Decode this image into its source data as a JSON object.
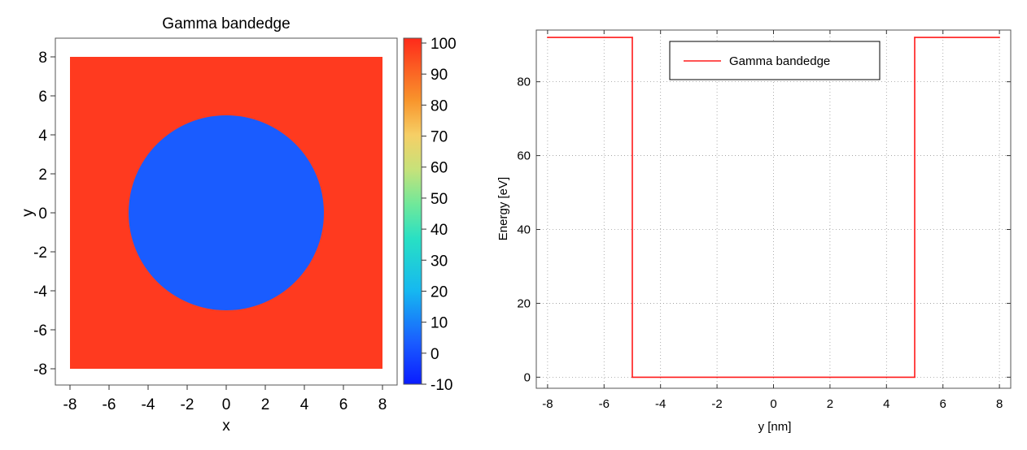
{
  "chart_data": [
    {
      "type": "heatmap",
      "title": "Gamma bandedge",
      "xlabel": "x",
      "ylabel": "y",
      "xlim": [
        -8,
        8
      ],
      "ylim": [
        -8,
        8
      ],
      "x_ticks": [
        -8,
        -6,
        -4,
        -2,
        0,
        2,
        4,
        6,
        8
      ],
      "y_ticks": [
        -8,
        -6,
        -4,
        -2,
        0,
        2,
        4,
        6,
        8
      ],
      "colorbar": {
        "range": [
          -10,
          100
        ],
        "ticks": [
          -10,
          0,
          10,
          20,
          30,
          40,
          50,
          60,
          70,
          80,
          90,
          100
        ],
        "colormap": "jet"
      },
      "regions": [
        {
          "shape": "square",
          "xmin": -8,
          "xmax": 8,
          "ymin": -8,
          "ymax": 8,
          "value": 92,
          "color": "#ff3a1f"
        },
        {
          "shape": "disk",
          "center": [
            0,
            0
          ],
          "radius": 5,
          "value": 0,
          "color": "#1a5cff"
        }
      ]
    },
    {
      "type": "line",
      "title": "",
      "xlabel": "y [nm]",
      "ylabel": "Energy [eV]",
      "xlim": [
        -8.4,
        8.4
      ],
      "ylim": [
        -3,
        94
      ],
      "x_ticks": [
        -8,
        -6,
        -4,
        -2,
        0,
        2,
        4,
        6,
        8
      ],
      "y_ticks": [
        0,
        20,
        40,
        60,
        80
      ],
      "grid": true,
      "legend_position": "top-center",
      "series": [
        {
          "name": "Gamma bandedge",
          "color": "#ff1a1a",
          "x": [
            -8,
            -5,
            -5,
            5,
            5,
            8
          ],
          "y": [
            92,
            92,
            0,
            0,
            92,
            92
          ]
        }
      ]
    }
  ]
}
